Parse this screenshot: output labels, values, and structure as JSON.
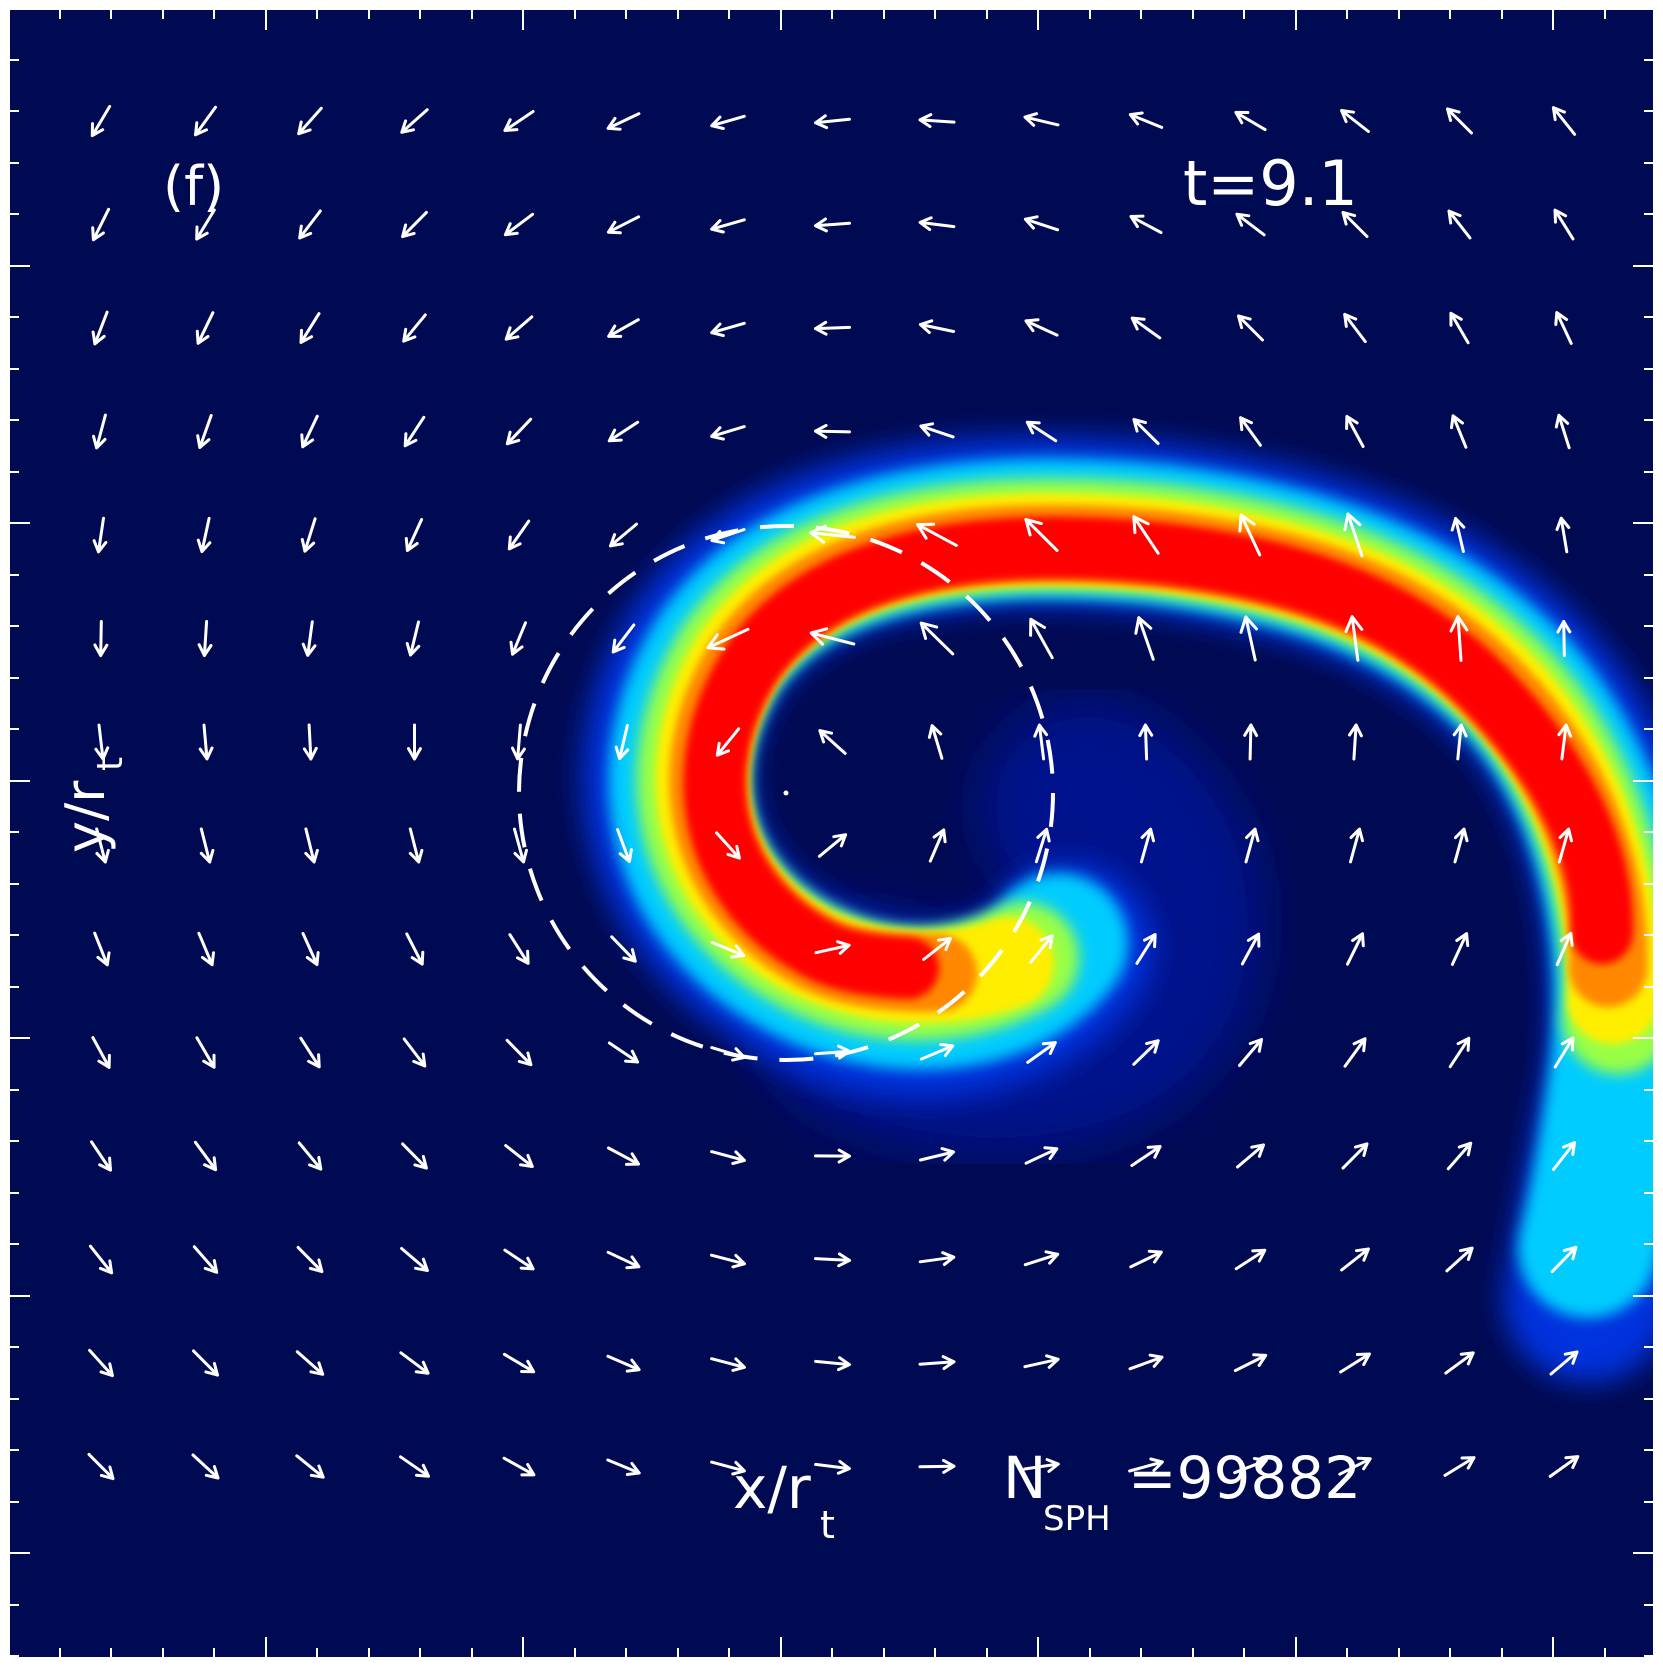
{
  "panel": {
    "label": "(f)",
    "time_label": "t=9.1",
    "x_axis_label": "x/r",
    "x_axis_sub": "t",
    "y_axis_label": "y/r",
    "y_axis_sub": "t",
    "nsph_label": "N",
    "nsph_sub": "SPH",
    "nsph_value": "=99882"
  },
  "colors": {
    "background": "#000a52",
    "arrows": "#ffffff",
    "colormap": [
      "#000a52",
      "#0033dd",
      "#00ccff",
      "#33ffcc",
      "#ffff00",
      "#ff8800",
      "#ff0000"
    ]
  },
  "icons": {
    "velocity_vectors": "arrow-icon",
    "tidal_radius": "dashed-circle"
  }
}
